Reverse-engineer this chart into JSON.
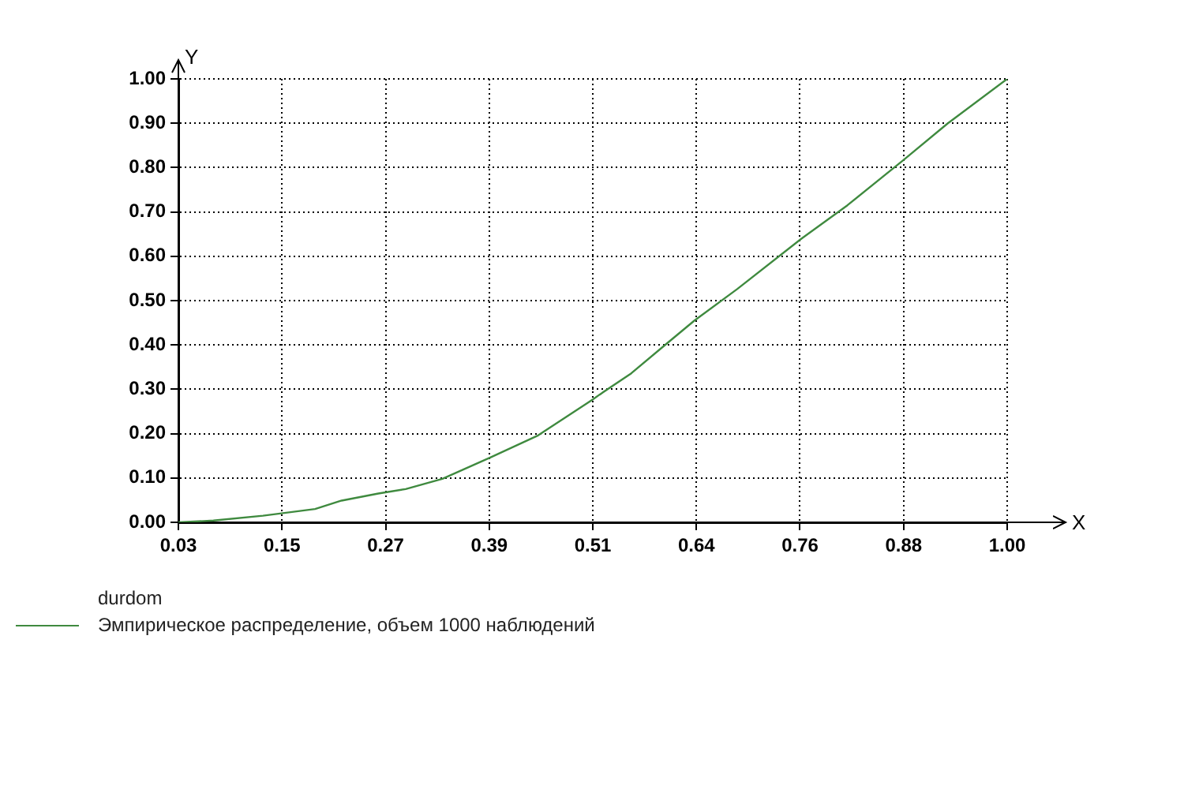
{
  "chart_data": {
    "type": "line",
    "xlabel": "X",
    "ylabel": "Y",
    "legend_title": "durdom",
    "legend": "bottom left",
    "grid": true,
    "marker": "none",
    "line_style": "solid",
    "xlim": [
      0.03,
      1.0
    ],
    "ylim": [
      0,
      1
    ],
    "xticks": [
      {
        "value": 0.03,
        "label": "0.03"
      },
      {
        "value": 0.15125,
        "label": "0.15"
      },
      {
        "value": 0.2725,
        "label": "0.27"
      },
      {
        "value": 0.39375,
        "label": "0.39"
      },
      {
        "value": 0.515,
        "label": "0.51"
      },
      {
        "value": 0.63625,
        "label": "0.64"
      },
      {
        "value": 0.7575,
        "label": "0.76"
      },
      {
        "value": 0.87875,
        "label": "0.88"
      },
      {
        "value": 1.0,
        "label": "1.00"
      }
    ],
    "yticks": [
      {
        "value": 0,
        "label": "0.00"
      },
      {
        "value": 0.1,
        "label": "0.10"
      },
      {
        "value": 0.2,
        "label": "0.20"
      },
      {
        "value": 0.3,
        "label": "0.30"
      },
      {
        "value": 0.4,
        "label": "0.40"
      },
      {
        "value": 0.5,
        "label": "0.50"
      },
      {
        "value": 0.6,
        "label": "0.60"
      },
      {
        "value": 0.7,
        "label": "0.70"
      },
      {
        "value": 0.8,
        "label": "0.80"
      },
      {
        "value": 0.9,
        "label": "0.90"
      },
      {
        "value": 1.0,
        "label": "1.00"
      }
    ],
    "series": [
      {
        "name": "Эмпирическое распределение, объем 1000 наблюдений",
        "color": "#3f8a3f",
        "x": [
          0.03,
          0.071,
          0.129,
          0.19,
          0.221,
          0.264,
          0.296,
          0.339,
          0.395,
          0.451,
          0.515,
          0.523,
          0.56,
          0.604,
          0.634,
          0.684,
          0.758,
          0.813,
          0.878,
          0.93,
          1.0
        ],
        "values": [
          0.0,
          0.004,
          0.015,
          0.03,
          0.049,
          0.065,
          0.075,
          0.098,
          0.146,
          0.196,
          0.277,
          0.288,
          0.336,
          0.407,
          0.455,
          0.526,
          0.638,
          0.715,
          0.816,
          0.899,
          1.0
        ]
      }
    ]
  }
}
